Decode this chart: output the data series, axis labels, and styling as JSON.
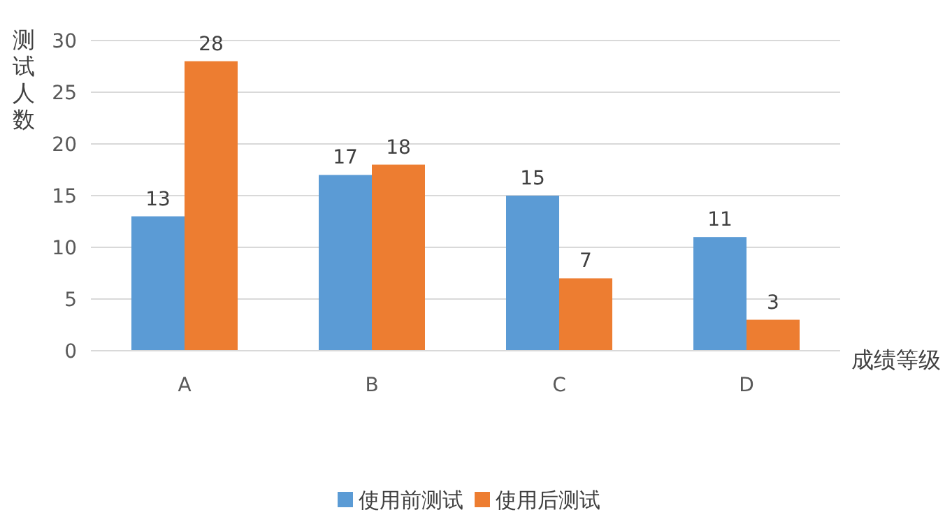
{
  "chart_data": {
    "type": "bar",
    "categories": [
      "A",
      "B",
      "C",
      "D"
    ],
    "series": [
      {
        "name": "使用前测试",
        "color": "#5b9bd5",
        "values": [
          13,
          17,
          15,
          11
        ]
      },
      {
        "name": "使用后测试",
        "color": "#ed7d31",
        "values": [
          28,
          18,
          7,
          3
        ]
      }
    ],
    "xlabel": "成绩等级",
    "ylabel": "测试人数",
    "ylim": [
      0,
      30
    ],
    "yticks": [
      0,
      5,
      10,
      15,
      20,
      25,
      30
    ],
    "grid": "y",
    "legend": "bottom",
    "data_labels": true
  }
}
